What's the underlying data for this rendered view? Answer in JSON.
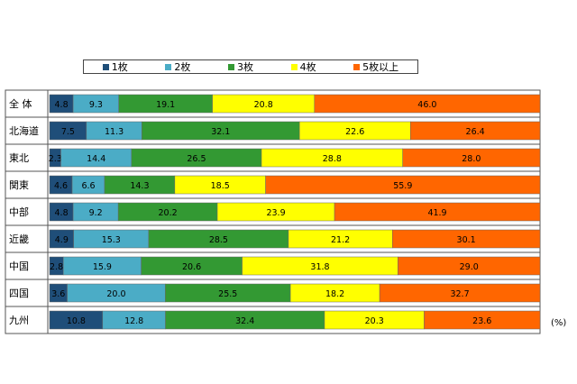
{
  "chart_data": {
    "type": "bar",
    "orientation": "horizontal",
    "stacked": true,
    "normalized_percent": true,
    "unit_label": "(%)",
    "categories": [
      "全 体",
      "北海道",
      "東北",
      "関東",
      "中部",
      "近畿",
      "中国",
      "四国",
      "九州"
    ],
    "series": [
      {
        "name": "1枚",
        "color": "#1f4e79",
        "values": [
          4.8,
          7.5,
          2.3,
          4.6,
          4.8,
          4.9,
          2.8,
          3.6,
          10.8
        ]
      },
      {
        "name": "2枚",
        "color": "#4bacc6",
        "values": [
          9.3,
          11.3,
          14.4,
          6.6,
          9.2,
          15.3,
          15.9,
          20.0,
          12.8
        ]
      },
      {
        "name": "3枚",
        "color": "#339933",
        "values": [
          19.1,
          32.1,
          26.5,
          14.3,
          20.2,
          28.5,
          20.6,
          25.5,
          32.4
        ]
      },
      {
        "name": "4枚",
        "color": "#ffff00",
        "values": [
          20.8,
          22.6,
          28.8,
          18.5,
          23.9,
          21.2,
          31.8,
          18.2,
          20.3
        ]
      },
      {
        "name": "5枚以上",
        "color": "#ff6600",
        "values": [
          46.0,
          26.4,
          28.0,
          55.9,
          41.9,
          30.1,
          29.0,
          32.7,
          23.6
        ]
      }
    ],
    "grid": false,
    "legend_position": "top"
  }
}
